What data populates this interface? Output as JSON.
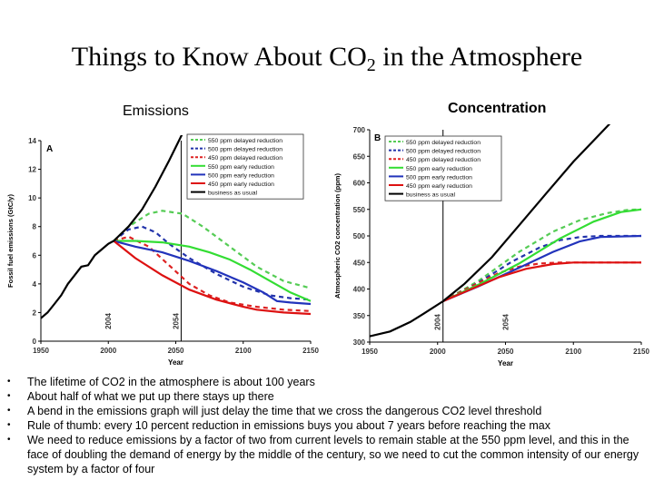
{
  "slide": {
    "title_main": "Things to Know About CO",
    "title_sub": "2",
    "title_tail": " in the Atmosphere",
    "label_emissions": "Emissions",
    "label_concentration": "Concentration",
    "bullets": [
      "The lifetime of CO2 in the atmosphere is about 100 years",
      "About half of what we put up there stays up there",
      "A bend in the emissions graph will just delay the time that we cross the dangerous CO2 level threshold",
      "Rule of thumb: every 10 percent reduction in emissions buys you about 7 years before reaching the max",
      "We need to reduce emissions by a factor of two from current levels to remain stable at the 550 ppm level, and this in the face of doubling the demand of energy by the middle of the century, so we need to cut the common intensity of our energy system by a factor of four"
    ],
    "bullet_glyph": "•"
  },
  "chart_data": [
    {
      "type": "line",
      "panel_letter": "A",
      "xlabel": "Year",
      "ylabel": "Fossil fuel emissions (GtC/y)",
      "xlim": [
        1950,
        2150
      ],
      "ylim": [
        0,
        14
      ],
      "xticks": [
        1950,
        2000,
        2050,
        2100,
        2150
      ],
      "yticks": [
        0,
        2,
        4,
        6,
        8,
        10,
        12,
        14
      ],
      "annotations": [
        {
          "x": 2004,
          "text": "2004"
        },
        {
          "x": 2054,
          "text": "2054"
        }
      ],
      "vline_x": 2054,
      "legend_position": "top-right",
      "series": [
        {
          "name": "550 ppm delayed reduction",
          "color": "#55cc55",
          "dash": true,
          "x": [
            2004,
            2015,
            2030,
            2040,
            2055,
            2070,
            2090,
            2110,
            2130,
            2150
          ],
          "y": [
            7.0,
            8.0,
            8.9,
            9.1,
            8.9,
            8.0,
            6.6,
            5.2,
            4.2,
            3.7
          ]
        },
        {
          "name": "500 ppm delayed reduction",
          "color": "#2233aa",
          "dash": true,
          "x": [
            2004,
            2015,
            2025,
            2035,
            2045,
            2060,
            2080,
            2100,
            2120,
            2135,
            2150
          ],
          "y": [
            7.0,
            7.8,
            8.0,
            7.6,
            6.8,
            5.8,
            4.7,
            3.8,
            3.2,
            3.0,
            2.9
          ]
        },
        {
          "name": "450 ppm delayed reduction",
          "color": "#dd2222",
          "dash": true,
          "x": [
            2004,
            2015,
            2030,
            2045,
            2060,
            2075,
            2090,
            2110,
            2130,
            2150
          ],
          "y": [
            7.0,
            7.3,
            6.6,
            5.3,
            4.0,
            3.2,
            2.7,
            2.4,
            2.2,
            2.1
          ]
        },
        {
          "name": "550 ppm early reduction",
          "color": "#33dd33",
          "dash": false,
          "x": [
            2004,
            2020,
            2040,
            2060,
            2075,
            2090,
            2105,
            2120,
            2135,
            2150
          ],
          "y": [
            7.0,
            7.0,
            6.9,
            6.6,
            6.2,
            5.7,
            5.0,
            4.2,
            3.4,
            2.8
          ]
        },
        {
          "name": "500 ppm early reduction",
          "color": "#2233bb",
          "dash": false,
          "x": [
            2004,
            2020,
            2040,
            2060,
            2080,
            2100,
            2115,
            2125,
            2135,
            2150
          ],
          "y": [
            7.0,
            6.6,
            6.2,
            5.6,
            4.9,
            4.1,
            3.4,
            2.8,
            2.7,
            2.6
          ]
        },
        {
          "name": "450 ppm early reduction",
          "color": "#dd1111",
          "dash": false,
          "x": [
            2004,
            2020,
            2040,
            2060,
            2080,
            2100,
            2110,
            2130,
            2150
          ],
          "y": [
            7.0,
            5.8,
            4.6,
            3.6,
            2.9,
            2.4,
            2.2,
            2.0,
            1.9
          ]
        },
        {
          "name": "business as usual",
          "color": "#000000",
          "dash": false,
          "x": [
            1950,
            1955,
            1960,
            1965,
            1970,
            1975,
            1980,
            1985,
            1990,
            1995,
            2000,
            2004,
            2015,
            2025,
            2035,
            2045,
            2055
          ],
          "y": [
            1.6,
            2.0,
            2.6,
            3.2,
            4.0,
            4.6,
            5.2,
            5.3,
            6.0,
            6.4,
            6.8,
            7.0,
            8.0,
            9.2,
            10.8,
            12.6,
            14.5
          ]
        }
      ]
    },
    {
      "type": "line",
      "panel_letter": "B",
      "xlabel": "Year",
      "ylabel": "Atmospheric CO2 concentration (ppm)",
      "xlim": [
        1950,
        2150
      ],
      "ylim": [
        300,
        700
      ],
      "xticks": [
        1950,
        2000,
        2050,
        2100,
        2150
      ],
      "yticks": [
        300,
        350,
        400,
        450,
        500,
        550,
        600,
        650,
        700
      ],
      "annotations": [
        {
          "x": 2004,
          "text": "2004"
        },
        {
          "x": 2054,
          "text": "2054"
        }
      ],
      "vline_x": 2004,
      "legend_position": "top-left",
      "series": [
        {
          "name": "550 ppm delayed reduction",
          "color": "#55cc55",
          "dash": true,
          "x": [
            2004,
            2030,
            2060,
            2085,
            2105,
            2125,
            2140,
            2150
          ],
          "y": [
            377,
            415,
            470,
            508,
            530,
            543,
            549,
            550
          ]
        },
        {
          "name": "500 ppm delayed reduction",
          "color": "#2233aa",
          "dash": true,
          "x": [
            2004,
            2030,
            2055,
            2075,
            2090,
            2105,
            2120,
            2150
          ],
          "y": [
            377,
            412,
            452,
            478,
            492,
            498,
            500,
            500
          ]
        },
        {
          "name": "450 ppm delayed reduction",
          "color": "#dd2222",
          "dash": true,
          "x": [
            2004,
            2025,
            2045,
            2060,
            2075,
            2090,
            2110,
            2150
          ],
          "y": [
            377,
            405,
            430,
            442,
            448,
            450,
            450,
            450
          ]
        },
        {
          "name": "550 ppm early reduction",
          "color": "#33dd33",
          "dash": false,
          "x": [
            2004,
            2030,
            2060,
            2090,
            2115,
            2135,
            2150
          ],
          "y": [
            377,
            408,
            448,
            495,
            527,
            545,
            550
          ]
        },
        {
          "name": "500 ppm early reduction",
          "color": "#2233bb",
          "dash": false,
          "x": [
            2004,
            2030,
            2060,
            2085,
            2105,
            2120,
            2150
          ],
          "y": [
            377,
            405,
            440,
            470,
            490,
            498,
            500
          ]
        },
        {
          "name": "450 ppm early reduction",
          "color": "#dd1111",
          "dash": false,
          "x": [
            2004,
            2025,
            2045,
            2065,
            2085,
            2100,
            2150
          ],
          "y": [
            377,
            400,
            422,
            438,
            447,
            450,
            450
          ]
        },
        {
          "name": "business as usual",
          "color": "#000000",
          "dash": false,
          "x": [
            1950,
            1965,
            1980,
            1990,
            2004,
            2020,
            2040,
            2060,
            2080,
            2100,
            2115,
            2130
          ],
          "y": [
            311,
            320,
            338,
            354,
            377,
            410,
            460,
            520,
            580,
            640,
            680,
            720
          ]
        }
      ]
    }
  ]
}
